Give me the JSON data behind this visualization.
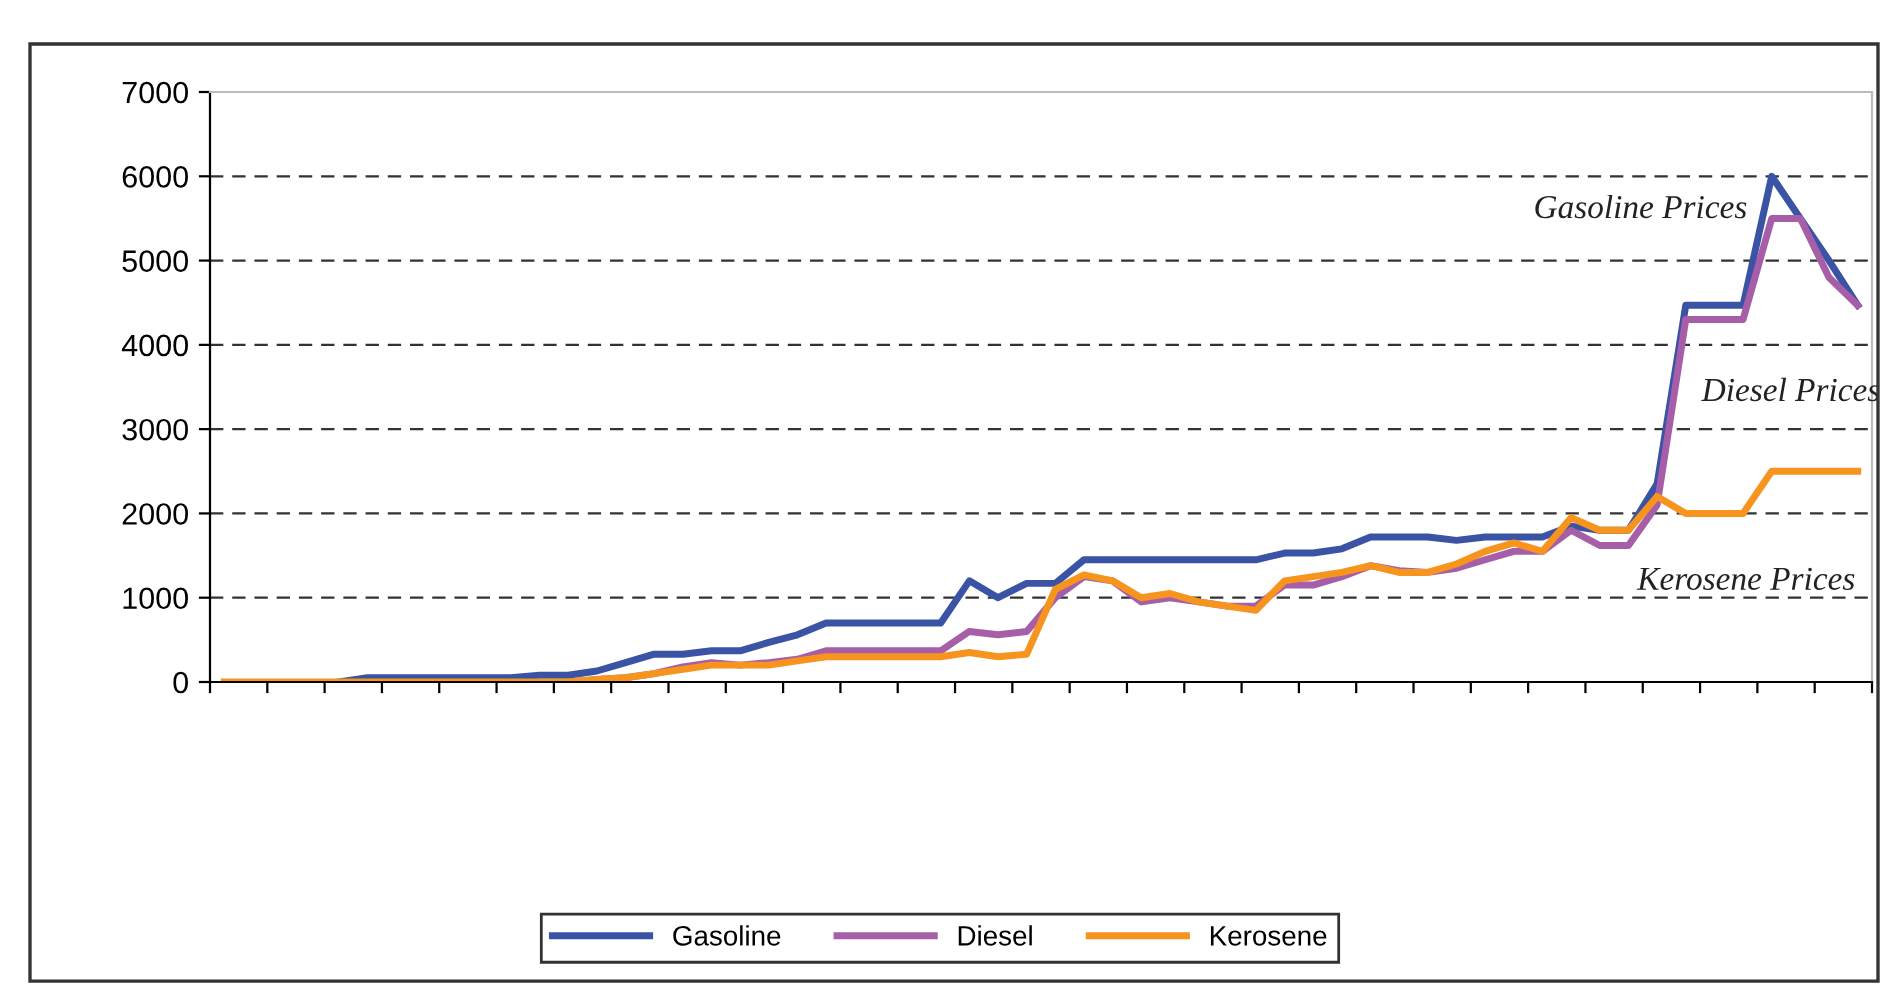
{
  "chart_data": {
    "type": "line",
    "categories": [
      null,
      null,
      null,
      null,
      null,
      null,
      null,
      null,
      null,
      null,
      null,
      null,
      null,
      null,
      null,
      null,
      null,
      null,
      null,
      null,
      null,
      null,
      null,
      null,
      null,
      null,
      null,
      null,
      null,
      null,
      null,
      null,
      null,
      null,
      null,
      null,
      null,
      null,
      null,
      null,
      null,
      null,
      null,
      null,
      null,
      null,
      null,
      null,
      null,
      null,
      null,
      null,
      null,
      null,
      null,
      null,
      null,
      null
    ],
    "series": [
      {
        "name": "Gasoline",
        "color": "#3a53a4",
        "values": [
          null,
          null,
          null,
          null,
          0,
          50,
          50,
          50,
          50,
          50,
          50,
          80,
          80,
          130,
          230,
          330,
          330,
          370,
          370,
          470,
          560,
          700,
          700,
          700,
          700,
          700,
          1200,
          1000,
          1170,
          1170,
          1450,
          1450,
          1450,
          1450,
          1450,
          1450,
          1450,
          1530,
          1530,
          1580,
          1720,
          1720,
          1720,
          1680,
          1720,
          1720,
          1720,
          1850,
          1800,
          1800,
          2350,
          4470,
          4470,
          4470,
          6000,
          5500,
          5000,
          4470
        ]
      },
      {
        "name": "Diesel",
        "color": "#a65ea8",
        "values": [
          null,
          null,
          null,
          null,
          null,
          null,
          null,
          null,
          null,
          null,
          null,
          null,
          0,
          30,
          50,
          100,
          180,
          230,
          200,
          230,
          270,
          370,
          370,
          370,
          370,
          370,
          600,
          560,
          600,
          1000,
          1250,
          1200,
          950,
          1000,
          950,
          900,
          900,
          1150,
          1150,
          1250,
          1380,
          1320,
          1300,
          1350,
          1450,
          1550,
          1550,
          1800,
          1620,
          1620,
          2100,
          4300,
          4300,
          4300,
          5500,
          5500,
          4800,
          4470
        ]
      },
      {
        "name": "Kerosene",
        "color": "#f7941d",
        "values": [
          0,
          0,
          0,
          0,
          0,
          0,
          0,
          0,
          0,
          0,
          0,
          0,
          0,
          30,
          50,
          100,
          150,
          200,
          200,
          200,
          250,
          300,
          300,
          300,
          300,
          300,
          350,
          300,
          330,
          1100,
          1270,
          1200,
          1000,
          1050,
          950,
          900,
          850,
          1200,
          1250,
          1300,
          1380,
          1300,
          1300,
          1400,
          1550,
          1650,
          1550,
          1950,
          1800,
          1800,
          2200,
          2000,
          2000,
          2000,
          2500,
          2500,
          2500,
          2500
        ]
      }
    ],
    "ylim": [
      0,
      7000
    ],
    "yticks": [
      0,
      1000,
      2000,
      3000,
      4000,
      5000,
      6000,
      7000
    ],
    "grid": "y",
    "legend": "bottom",
    "marker": "none",
    "line_style": "solid",
    "annotations": [
      "Gasoline Prices",
      "Diesel Prices",
      "Kerosene Prices"
    ]
  }
}
